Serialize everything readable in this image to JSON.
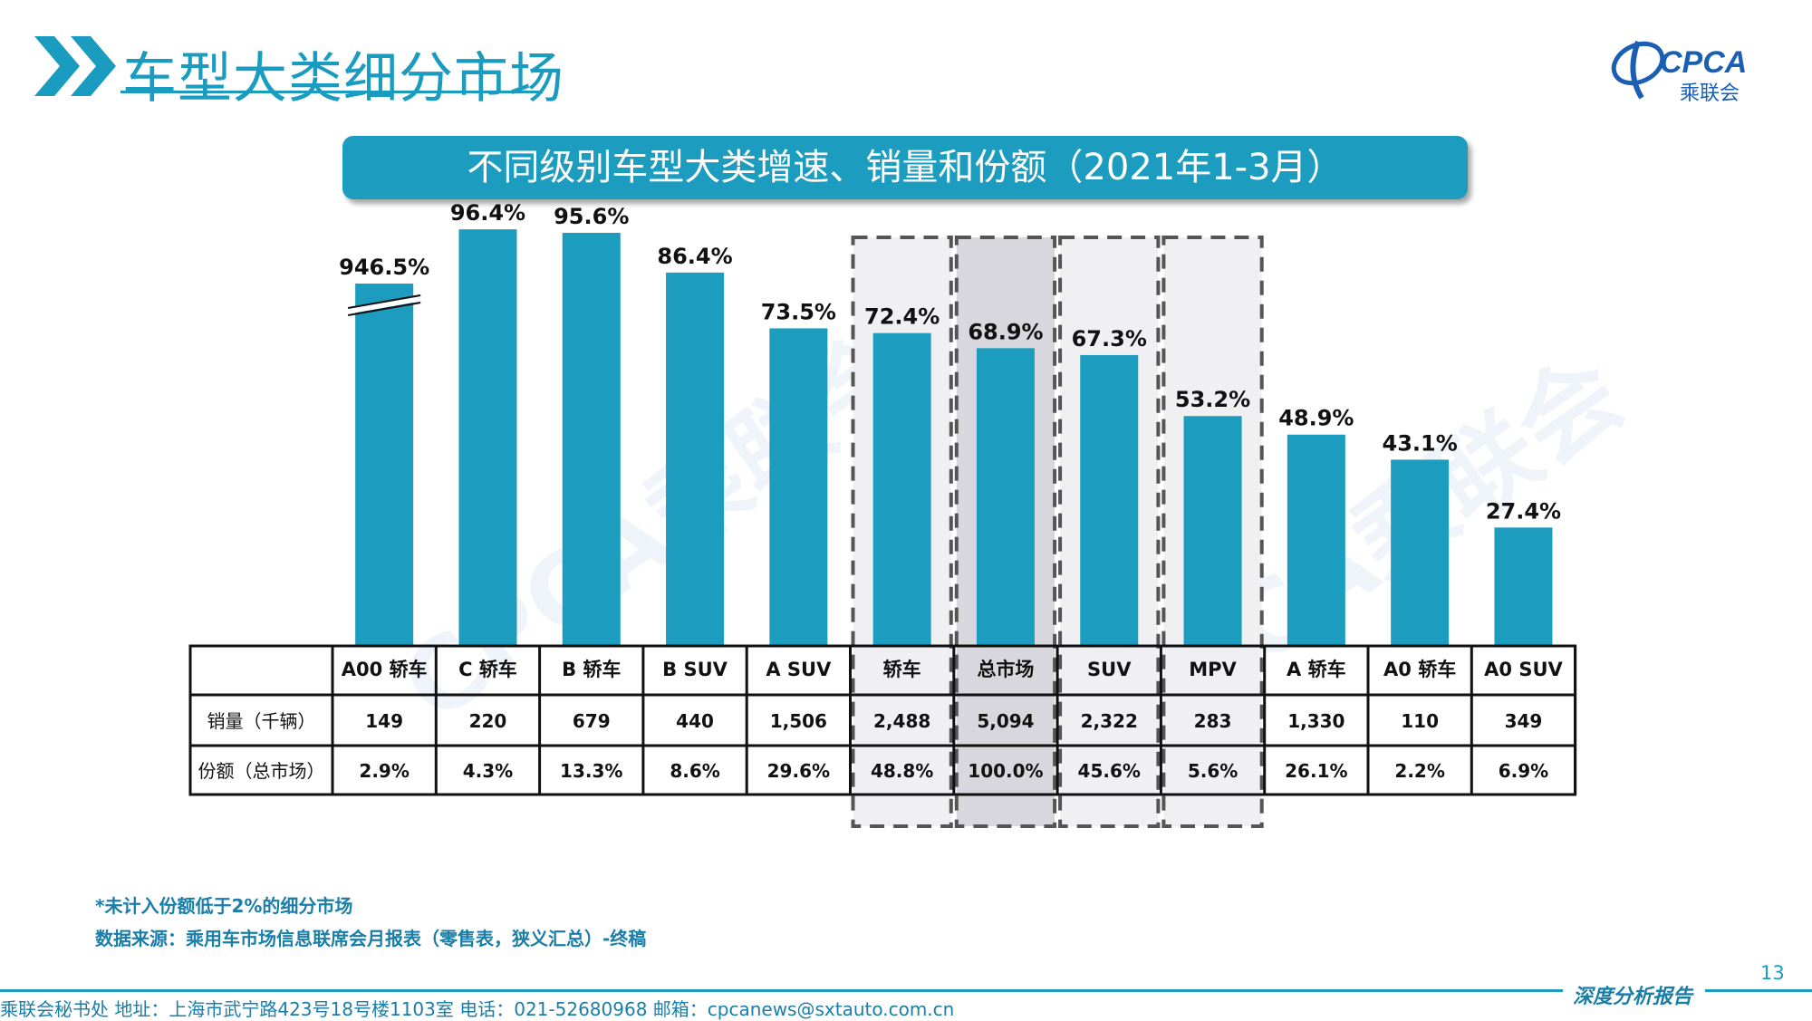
{
  "page": {
    "title": "车型大类细分市场",
    "page_number": "13",
    "notes": [
      "*未计入份额低于2%的细分市场",
      "数据来源：乘用车市场信息联席会月报表（零售表，狭义汇总）-终稿"
    ],
    "footer_text": "乘联会秘书处   地址：上海市武宁路423号18号楼1103室  电话：021-52680968   邮箱：cpcanews@sxtauto.com.cn",
    "footer_report": "深度分析报告",
    "logo": {
      "text": "CPCA",
      "subtext": "乘联会"
    },
    "watermark": "CPCA乘联会"
  },
  "colors": {
    "accent": "#1a9cc0",
    "bar": "#1c9cbe",
    "highlight_box": "#f0f0f2",
    "highlight_box_dark": "#d7d7dd",
    "footer_text": "#1a7ea8"
  },
  "chart_data": {
    "type": "bar",
    "title": "不同级别车型大类增速、销量和份额（2021年1-3月）",
    "categories": [
      "A00 轿车",
      "C 轿车",
      "B 轿车",
      "B SUV",
      "A SUV",
      "轿车",
      "总市场",
      "SUV",
      "MPV",
      "A 轿车",
      "A0 轿车",
      "A0 SUV"
    ],
    "series": [
      {
        "values": [
          946.5,
          96.4,
          95.6,
          86.4,
          73.5,
          72.4,
          68.9,
          67.3,
          53.2,
          48.9,
          43.1,
          27.4
        ],
        "labels": [
          "946.5%",
          "96.4%",
          "95.6%",
          "86.4%",
          "73.5%",
          "72.4%",
          "68.9%",
          "67.3%",
          "53.2%",
          "48.9%",
          "43.1%",
          "27.4%"
        ]
      }
    ],
    "axis_break_on": [
      "A00 轿车"
    ],
    "highlighted_categories": [
      "轿车",
      "总市场",
      "SUV",
      "MPV"
    ],
    "emphasized_category": "总市场",
    "table": {
      "rows": [
        {
          "label": "销量（千辆）",
          "values": [
            "149",
            "220",
            "679",
            "440",
            "1,506",
            "2,488",
            "5,094",
            "2,322",
            "283",
            "1,330",
            "110",
            "349"
          ]
        },
        {
          "label": "份额（总市场）",
          "values": [
            "2.9%",
            "4.3%",
            "13.3%",
            "8.6%",
            "29.6%",
            "48.8%",
            "100.0%",
            "45.6%",
            "5.6%",
            "26.1%",
            "2.2%",
            "6.9%"
          ]
        }
      ]
    },
    "grid": false,
    "legend": "none"
  }
}
